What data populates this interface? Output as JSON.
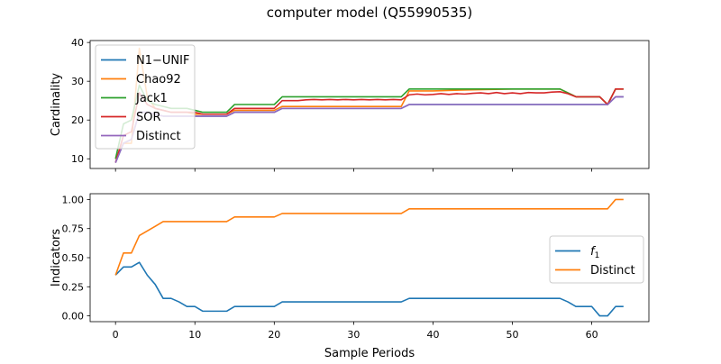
{
  "figure": {
    "title": "computer model (Q55990535)",
    "xlabel": "Sample Periods"
  },
  "chart_data": [
    {
      "type": "line",
      "ylabel": "Cardinality",
      "xlim": [
        -3.2,
        67.2
      ],
      "ylim": [
        7.5,
        40.5
      ],
      "xticks": [
        0,
        10,
        20,
        30,
        40,
        50,
        60
      ],
      "yticks": [
        10,
        20,
        30,
        40
      ],
      "show_xtick_labels": false,
      "grid": false,
      "legend": "upper left",
      "series": [
        {
          "name": "N1−UNIF",
          "color": "#1f77b4",
          "points": [
            [
              0,
              9
            ],
            [
              1,
              14
            ],
            [
              2,
              15
            ],
            [
              3,
              22
            ],
            [
              4,
              22
            ],
            [
              5,
              21.5
            ],
            [
              6,
              21
            ],
            [
              7,
              21
            ],
            [
              8,
              21
            ],
            [
              9,
              21
            ],
            [
              10,
              21
            ],
            [
              11,
              21
            ],
            [
              12,
              21
            ],
            [
              13,
              21
            ],
            [
              14,
              21
            ],
            [
              15,
              22
            ],
            [
              16,
              22
            ],
            [
              17,
              22
            ],
            [
              18,
              22
            ],
            [
              19,
              22
            ],
            [
              20,
              22
            ],
            [
              21,
              23
            ],
            [
              25,
              23
            ],
            [
              30,
              23
            ],
            [
              36,
              23
            ],
            [
              37,
              24
            ],
            [
              40,
              24
            ],
            [
              50,
              24
            ],
            [
              56,
              24
            ],
            [
              57,
              24
            ],
            [
              60,
              24
            ],
            [
              62,
              24
            ],
            [
              63,
              26
            ],
            [
              64,
              26
            ]
          ]
        },
        {
          "name": "Chao92",
          "color": "#ff7f0e",
          "points": [
            [
              0,
              10
            ],
            [
              1,
              14
            ],
            [
              2,
              14
            ],
            [
              3,
              38.5
            ],
            [
              4,
              26
            ],
            [
              5,
              23
            ],
            [
              6,
              22.5
            ],
            [
              7,
              22
            ],
            [
              8,
              22
            ],
            [
              9,
              22
            ],
            [
              10,
              21.5
            ],
            [
              11,
              21.5
            ],
            [
              12,
              21.5
            ],
            [
              13,
              21.5
            ],
            [
              14,
              21.5
            ],
            [
              15,
              22.5
            ],
            [
              16,
              22.5
            ],
            [
              17,
              22.5
            ],
            [
              18,
              22.5
            ],
            [
              19,
              22.5
            ],
            [
              20,
              22.5
            ],
            [
              21,
              23.5
            ],
            [
              25,
              23.5
            ],
            [
              30,
              23.5
            ],
            [
              36,
              23.5
            ],
            [
              37,
              27.5
            ],
            [
              40,
              27.5
            ],
            [
              45,
              27.8
            ],
            [
              50,
              28
            ],
            [
              55,
              28
            ],
            [
              56,
              28
            ],
            [
              57,
              27
            ],
            [
              58,
              26
            ],
            [
              60,
              26
            ],
            [
              61,
              26
            ],
            [
              62,
              24
            ],
            [
              63,
              28
            ],
            [
              64,
              28
            ]
          ]
        },
        {
          "name": "Jack1",
          "color": "#2ca02c",
          "points": [
            [
              0,
              10
            ],
            [
              1,
              19
            ],
            [
              2,
              20
            ],
            [
              3,
              29
            ],
            [
              4,
              25
            ],
            [
              5,
              24
            ],
            [
              6,
              23.5
            ],
            [
              7,
              23
            ],
            [
              8,
              23
            ],
            [
              9,
              23
            ],
            [
              10,
              22.5
            ],
            [
              11,
              22
            ],
            [
              12,
              22
            ],
            [
              13,
              22
            ],
            [
              14,
              22
            ],
            [
              15,
              24
            ],
            [
              16,
              24
            ],
            [
              17,
              24
            ],
            [
              18,
              24
            ],
            [
              19,
              24
            ],
            [
              20,
              24
            ],
            [
              21,
              26
            ],
            [
              25,
              26
            ],
            [
              30,
              26
            ],
            [
              36,
              26
            ],
            [
              37,
              28
            ],
            [
              40,
              28
            ],
            [
              45,
              28
            ],
            [
              50,
              28
            ],
            [
              55,
              28
            ],
            [
              56,
              28
            ],
            [
              57,
              27
            ],
            [
              58,
              26
            ],
            [
              60,
              26
            ],
            [
              61,
              26
            ],
            [
              62,
              24
            ],
            [
              63,
              28
            ],
            [
              64,
              28
            ]
          ]
        },
        {
          "name": "SOR",
          "color": "#d62728",
          "points": [
            [
              0,
              9
            ],
            [
              1,
              16
            ],
            [
              2,
              17
            ],
            [
              3,
              27
            ],
            [
              4,
              24
            ],
            [
              5,
              23
            ],
            [
              6,
              22.5
            ],
            [
              7,
              22
            ],
            [
              8,
              22
            ],
            [
              9,
              22
            ],
            [
              10,
              22
            ],
            [
              11,
              21.5
            ],
            [
              12,
              21.5
            ],
            [
              13,
              21.5
            ],
            [
              14,
              21.5
            ],
            [
              15,
              23
            ],
            [
              16,
              23
            ],
            [
              17,
              23
            ],
            [
              18,
              23
            ],
            [
              19,
              23
            ],
            [
              20,
              23
            ],
            [
              21,
              25
            ],
            [
              22,
              25
            ],
            [
              23,
              25
            ],
            [
              24,
              25.2
            ],
            [
              25,
              25.3
            ],
            [
              26,
              25.2
            ],
            [
              27,
              25.3
            ],
            [
              28,
              25.2
            ],
            [
              29,
              25.3
            ],
            [
              30,
              25.2
            ],
            [
              31,
              25.3
            ],
            [
              32,
              25.2
            ],
            [
              33,
              25.3
            ],
            [
              34,
              25.2
            ],
            [
              35,
              25.3
            ],
            [
              36,
              25.2
            ],
            [
              37,
              26.5
            ],
            [
              38,
              26.7
            ],
            [
              39,
              26.5
            ],
            [
              40,
              26.6
            ],
            [
              41,
              26.8
            ],
            [
              42,
              26.6
            ],
            [
              43,
              26.8
            ],
            [
              44,
              26.7
            ],
            [
              45,
              26.9
            ],
            [
              46,
              27
            ],
            [
              47,
              26.8
            ],
            [
              48,
              27.1
            ],
            [
              49,
              26.8
            ],
            [
              50,
              27
            ],
            [
              51,
              26.8
            ],
            [
              52,
              27.1
            ],
            [
              53,
              27
            ],
            [
              54,
              27
            ],
            [
              55,
              27.2
            ],
            [
              56,
              27.3
            ],
            [
              57,
              26.8
            ],
            [
              58,
              26
            ],
            [
              60,
              26
            ],
            [
              61,
              26
            ],
            [
              62,
              24
            ],
            [
              63,
              28
            ],
            [
              64,
              28
            ]
          ]
        },
        {
          "name": "Distinct",
          "color": "#9467bd",
          "points": [
            [
              0,
              9
            ],
            [
              1,
              14
            ],
            [
              2,
              15
            ],
            [
              3,
              22
            ],
            [
              4,
              22
            ],
            [
              5,
              21.5
            ],
            [
              6,
              21
            ],
            [
              7,
              21
            ],
            [
              8,
              21
            ],
            [
              9,
              21
            ],
            [
              10,
              21
            ],
            [
              11,
              21
            ],
            [
              12,
              21
            ],
            [
              13,
              21
            ],
            [
              14,
              21
            ],
            [
              15,
              22
            ],
            [
              16,
              22
            ],
            [
              17,
              22
            ],
            [
              18,
              22
            ],
            [
              19,
              22
            ],
            [
              20,
              22
            ],
            [
              21,
              23
            ],
            [
              25,
              23
            ],
            [
              30,
              23
            ],
            [
              36,
              23
            ],
            [
              37,
              24
            ],
            [
              40,
              24
            ],
            [
              50,
              24
            ],
            [
              56,
              24
            ],
            [
              57,
              24
            ],
            [
              60,
              24
            ],
            [
              62,
              24
            ],
            [
              63,
              26
            ],
            [
              64,
              26
            ]
          ]
        }
      ]
    },
    {
      "type": "line",
      "ylabel": "Indicators",
      "xlim": [
        -3.2,
        67.2
      ],
      "ylim": [
        -0.05,
        1.05
      ],
      "xticks": [
        0,
        10,
        20,
        30,
        40,
        50,
        60
      ],
      "yticks": [
        0.0,
        0.25,
        0.5,
        0.75,
        1.0
      ],
      "ytick_labels": [
        "0.00",
        "0.25",
        "0.50",
        "0.75",
        "1.00"
      ],
      "show_xtick_labels": true,
      "grid": false,
      "legend": "center right",
      "series": [
        {
          "name": "f1",
          "name_main": "f",
          "name_sub": "1",
          "color": "#1f77b4",
          "points": [
            [
              0,
              0.35
            ],
            [
              1,
              0.42
            ],
            [
              2,
              0.42
            ],
            [
              3,
              0.46
            ],
            [
              4,
              0.35
            ],
            [
              5,
              0.27
            ],
            [
              6,
              0.15
            ],
            [
              7,
              0.15
            ],
            [
              8,
              0.12
            ],
            [
              9,
              0.08
            ],
            [
              10,
              0.08
            ],
            [
              11,
              0.04
            ],
            [
              12,
              0.04
            ],
            [
              13,
              0.04
            ],
            [
              14,
              0.04
            ],
            [
              15,
              0.08
            ],
            [
              20,
              0.08
            ],
            [
              21,
              0.12
            ],
            [
              36,
              0.12
            ],
            [
              37,
              0.15
            ],
            [
              56,
              0.15
            ],
            [
              57,
              0.12
            ],
            [
              58,
              0.08
            ],
            [
              60,
              0.08
            ],
            [
              61,
              0.0
            ],
            [
              62,
              0.0
            ],
            [
              63,
              0.08
            ],
            [
              64,
              0.08
            ]
          ]
        },
        {
          "name": "Distinct",
          "color": "#ff7f0e",
          "points": [
            [
              0,
              0.35
            ],
            [
              1,
              0.54
            ],
            [
              2,
              0.54
            ],
            [
              3,
              0.69
            ],
            [
              4,
              0.73
            ],
            [
              5,
              0.77
            ],
            [
              6,
              0.81
            ],
            [
              7,
              0.81
            ],
            [
              14,
              0.81
            ],
            [
              15,
              0.85
            ],
            [
              20,
              0.85
            ],
            [
              21,
              0.88
            ],
            [
              36,
              0.88
            ],
            [
              37,
              0.92
            ],
            [
              62,
              0.92
            ],
            [
              63,
              1.0
            ],
            [
              64,
              1.0
            ]
          ]
        }
      ]
    }
  ]
}
